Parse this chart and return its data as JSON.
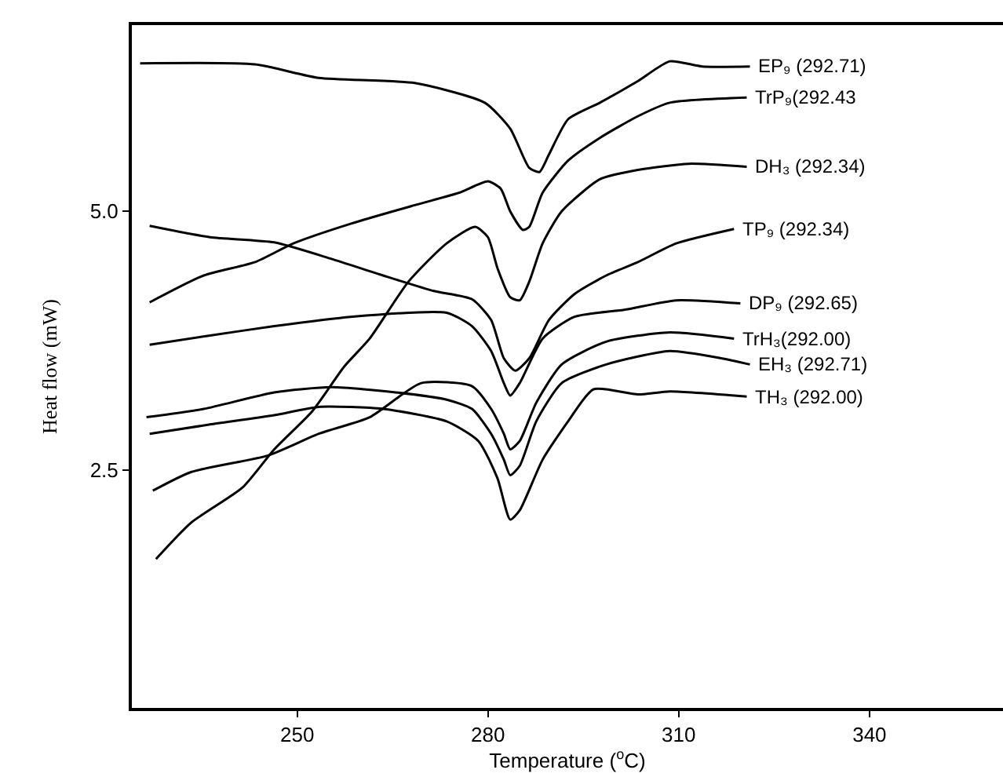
{
  "chart_data": {
    "type": "line",
    "xlabel": "Temperature ($^{o}$C)",
    "ylabel": "Heat flow (mW)",
    "xlim": [
      224,
      361
    ],
    "ylim": [
      0.2,
      6.8
    ],
    "xticks": [
      250,
      280,
      310,
      340
    ],
    "yticks": [
      2.5,
      {
        "value": 5.0,
        "label": "5.0"
      }
    ],
    "legend": false,
    "marker": "none",
    "line_style": "solid",
    "series": [
      {
        "name": "EP₉ (292.71)",
        "color": "#000000",
        "x": [
          225.3,
          243.4,
          253.4,
          268.5,
          279.5,
          283.5,
          286.5,
          288.1,
          289.6,
          292.6,
          297.6,
          303.6,
          308.6,
          313.7,
          321.2
        ],
        "values": [
          6.43,
          6.42,
          6.29,
          6.24,
          6.05,
          5.8,
          5.42,
          5.38,
          5.55,
          5.89,
          6.05,
          6.26,
          6.45,
          6.4,
          6.4
        ]
      },
      {
        "name": "TrP₉(292.43",
        "color": "#000000",
        "x": [
          226.8,
          235.3,
          243.4,
          249.4,
          258.4,
          268.5,
          275.5,
          280.0,
          282.0,
          283.5,
          285.5,
          286.5,
          288.6,
          292.6,
          297.6,
          303.6,
          308.6,
          320.7
        ],
        "values": [
          4.12,
          4.38,
          4.51,
          4.69,
          4.88,
          5.06,
          5.18,
          5.29,
          5.22,
          5.0,
          4.82,
          4.85,
          5.18,
          5.49,
          5.71,
          5.92,
          6.05,
          6.1
        ]
      },
      {
        "name": "DH₃ (292.34)",
        "color": "#000000",
        "x": [
          227.8,
          233.3,
          241.4,
          246.4,
          252.4,
          257.4,
          261.4,
          267.5,
          273.5,
          278.0,
          280.0,
          281.5,
          283.5,
          285.0,
          286.5,
          288.6,
          291.6,
          297.6,
          303.6,
          311.6,
          320.7
        ],
        "values": [
          1.64,
          1.99,
          2.33,
          2.7,
          3.07,
          3.5,
          3.77,
          4.32,
          4.69,
          4.85,
          4.75,
          4.45,
          4.17,
          4.14,
          4.32,
          4.69,
          5.0,
          5.31,
          5.4,
          5.46,
          5.43
        ]
      },
      {
        "name": "TP₉ (292.34)",
        "color": "#000000",
        "x": [
          226.8,
          236.3,
          246.4,
          255.4,
          263.5,
          271.5,
          277.5,
          280.5,
          282.5,
          284.3,
          286.5,
          289.6,
          293.6,
          298.6,
          303.6,
          309.6,
          318.7
        ],
        "values": [
          4.86,
          4.75,
          4.7,
          4.54,
          4.38,
          4.23,
          4.15,
          3.95,
          3.58,
          3.46,
          3.58,
          3.95,
          4.2,
          4.38,
          4.51,
          4.69,
          4.83
        ]
      },
      {
        "name": "DP₉ (292.65)",
        "color": "#000000",
        "x": [
          226.8,
          236.3,
          246.4,
          258.4,
          273.5,
          277.5,
          280.5,
          282.5,
          283.5,
          285.0,
          288.6,
          293.6,
          301.6,
          309.6,
          319.7
        ],
        "values": [
          3.71,
          3.8,
          3.89,
          3.98,
          4.02,
          3.89,
          3.65,
          3.34,
          3.22,
          3.34,
          3.77,
          3.98,
          4.05,
          4.14,
          4.11
        ]
      },
      {
        "name": "TrH₃(292.00)",
        "color": "#000000",
        "x": [
          227.3,
          233.3,
          245.4,
          253.4,
          261.4,
          269.5,
          277.5,
          280.5,
          282.5,
          283.5,
          285.0,
          287.6,
          291.6,
          298.6,
          308.6,
          318.7
        ],
        "values": [
          2.3,
          2.48,
          2.64,
          2.85,
          3.01,
          3.34,
          3.31,
          3.09,
          2.85,
          2.7,
          2.78,
          3.15,
          3.52,
          3.74,
          3.83,
          3.77
        ]
      },
      {
        "name": "EH₃ (292.71)",
        "color": "#000000",
        "x": [
          226.3,
          235.3,
          246.4,
          255.4,
          265.5,
          273.5,
          277.5,
          280.5,
          282.5,
          283.5,
          285.0,
          287.6,
          291.6,
          298.6,
          308.6,
          316.7,
          321.2
        ],
        "values": [
          3.01,
          3.09,
          3.25,
          3.3,
          3.25,
          3.18,
          3.09,
          2.85,
          2.6,
          2.45,
          2.54,
          2.97,
          3.34,
          3.52,
          3.65,
          3.58,
          3.52
        ]
      },
      {
        "name": "TH₃ (292.00)",
        "color": "#000000",
        "x": [
          226.8,
          236.3,
          246.4,
          253.4,
          263.5,
          273.5,
          278.5,
          281.5,
          283.5,
          285.0,
          288.6,
          292.6,
          296.6,
          303.6,
          308.6,
          320.7
        ],
        "values": [
          2.85,
          2.94,
          3.03,
          3.11,
          3.09,
          2.97,
          2.78,
          2.42,
          2.02,
          2.11,
          2.6,
          2.97,
          3.28,
          3.23,
          3.26,
          3.21
        ]
      }
    ]
  }
}
